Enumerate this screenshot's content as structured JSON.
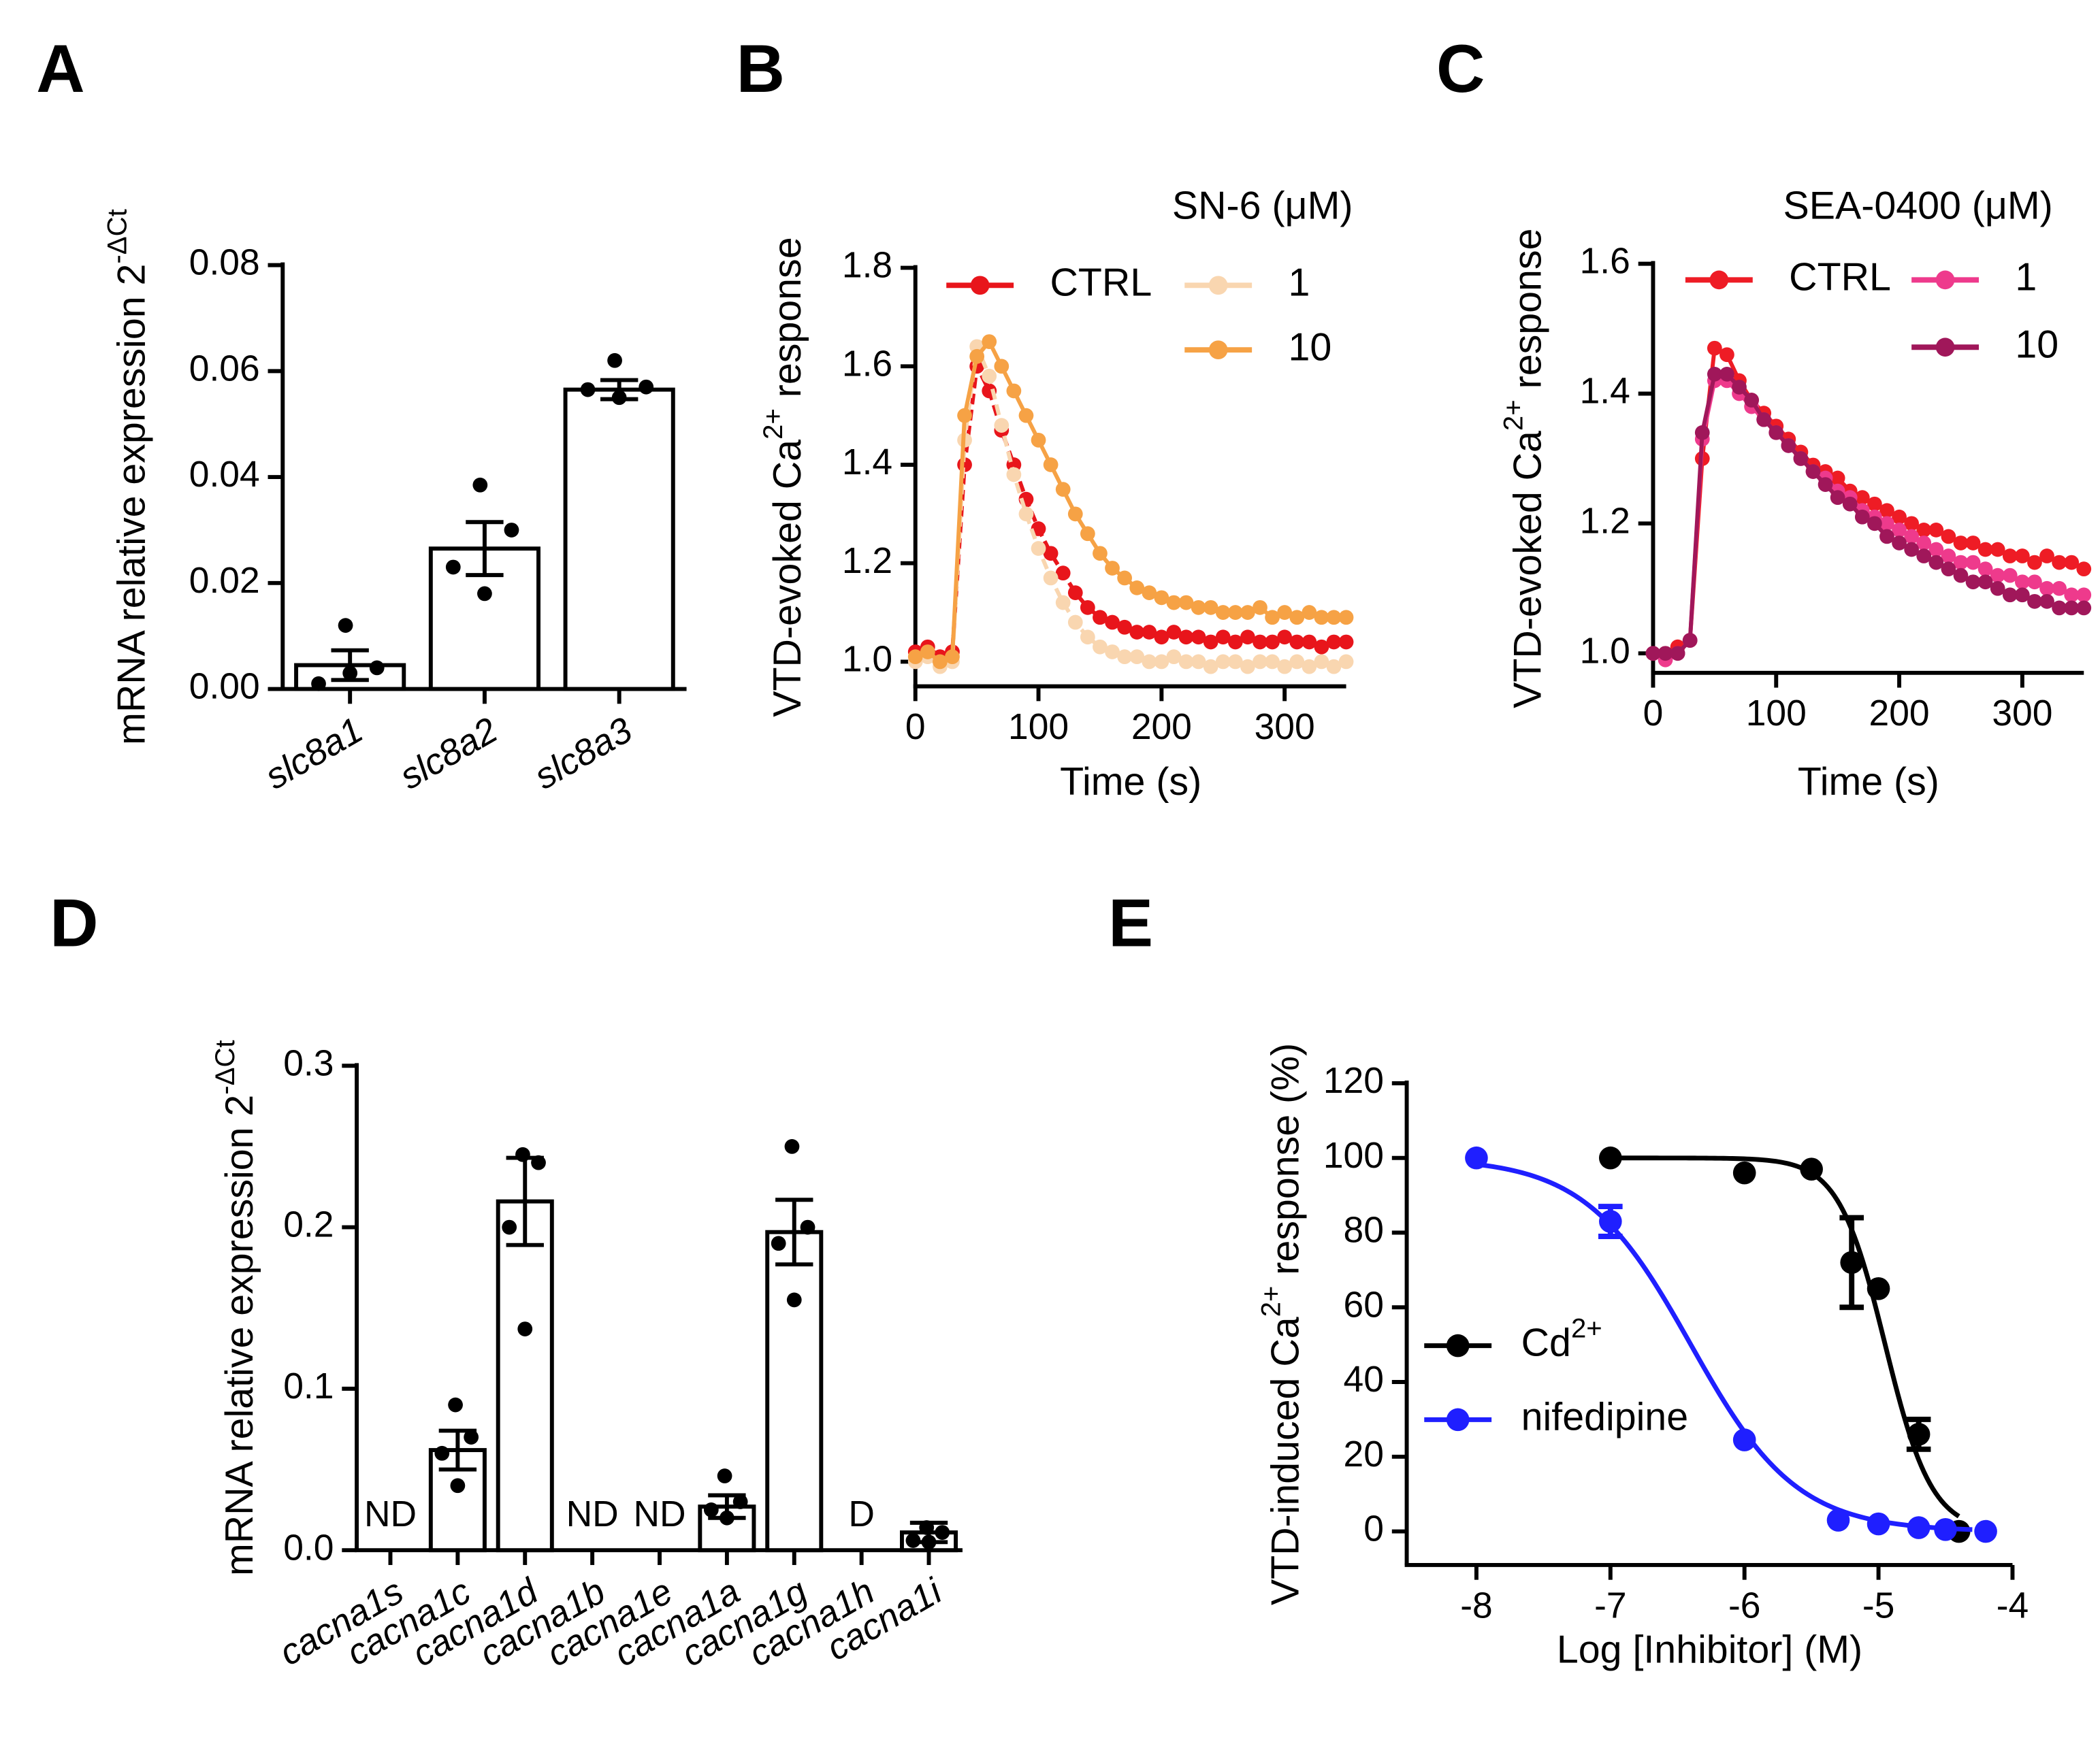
{
  "chart_data": [
    {
      "type": "bar",
      "panel": "A",
      "ylabel": [
        "mRNA relative expression 2",
        "-ΔCt"
      ],
      "categories": [
        "slc8a1",
        "slc8a2",
        "slc8a3"
      ],
      "values": [
        0.0045,
        0.0265,
        0.0565
      ],
      "errors": [
        0.0028,
        0.005,
        0.0018
      ],
      "points": [
        [
          0.012,
          0.004,
          0.001,
          0.003
        ],
        [
          0.0385,
          0.03,
          0.023,
          0.018
        ],
        [
          0.062,
          0.057,
          0.0565,
          0.055
        ]
      ],
      "color": "#ffffff",
      "ylim": [
        0,
        0.08
      ],
      "yticks": [
        {
          "value": 0,
          "label": "0.00"
        },
        0.02,
        0.04,
        0.06,
        0.08
      ]
    },
    {
      "type": "line",
      "panel": "B",
      "legend_title": "SN-6 (μM)",
      "ylabel": [
        "VTD-evoked Ca",
        "2+",
        " response"
      ],
      "xlabel": "Time (s)",
      "x": [
        0,
        10,
        20,
        30,
        40,
        50,
        60,
        70,
        80,
        90,
        100,
        110,
        120,
        130,
        140,
        150,
        160,
        170,
        180,
        190,
        200,
        210,
        220,
        230,
        240,
        250,
        260,
        270,
        280,
        290,
        300,
        310,
        320,
        330,
        340,
        350
      ],
      "series": [
        {
          "name": "CTRL",
          "color": "#e8151b",
          "values": [
            1.02,
            1.03,
            1.01,
            1.02,
            1.4,
            1.6,
            1.55,
            1.47,
            1.4,
            1.33,
            1.27,
            1.22,
            1.18,
            1.14,
            1.11,
            1.09,
            1.08,
            1.07,
            1.06,
            1.06,
            1.05,
            1.06,
            1.05,
            1.05,
            1.04,
            1.05,
            1.04,
            1.05,
            1.04,
            1.04,
            1.05,
            1.04,
            1.04,
            1.03,
            1.04,
            1.04
          ]
        },
        {
          "name": "1",
          "color": "#f9d6b0",
          "values": [
            1.0,
            1.01,
            0.99,
            1.0,
            1.45,
            1.64,
            1.58,
            1.48,
            1.38,
            1.3,
            1.23,
            1.17,
            1.12,
            1.08,
            1.05,
            1.03,
            1.02,
            1.01,
            1.01,
            1.0,
            1.0,
            1.01,
            1.0,
            1.0,
            0.99,
            1.0,
            1.0,
            0.99,
            1.0,
            1.0,
            0.99,
            1.0,
            0.99,
            1.0,
            0.99,
            1.0
          ]
        },
        {
          "name": "10",
          "color": "#f6a245",
          "values": [
            1.01,
            1.02,
            1.0,
            1.01,
            1.5,
            1.62,
            1.65,
            1.6,
            1.55,
            1.5,
            1.45,
            1.4,
            1.35,
            1.3,
            1.26,
            1.22,
            1.19,
            1.17,
            1.15,
            1.14,
            1.13,
            1.12,
            1.12,
            1.11,
            1.11,
            1.1,
            1.1,
            1.1,
            1.11,
            1.09,
            1.1,
            1.09,
            1.1,
            1.09,
            1.09,
            1.09
          ]
        }
      ],
      "xlim": [
        0,
        350
      ],
      "xticks": [
        0,
        100,
        200,
        300
      ],
      "ylim": [
        0.95,
        1.8
      ],
      "yticks": [
        {
          "value": 1,
          "label": "1.0"
        },
        1.2,
        1.4,
        1.6,
        1.8
      ]
    },
    {
      "type": "line",
      "panel": "C",
      "legend_title": "SEA-0400  (μM)",
      "ylabel": [
        "VTD-evoked Ca",
        "2+",
        " response"
      ],
      "xlabel": "Time (s)",
      "x": [
        0,
        10,
        20,
        30,
        40,
        50,
        60,
        70,
        80,
        90,
        100,
        110,
        120,
        130,
        140,
        150,
        160,
        170,
        180,
        190,
        200,
        210,
        220,
        230,
        240,
        250,
        260,
        270,
        280,
        290,
        300,
        310,
        320,
        330,
        340,
        350
      ],
      "series": [
        {
          "name": "CTRL",
          "color": "#ee1c25",
          "values": [
            1.0,
            1.0,
            1.01,
            1.02,
            1.3,
            1.47,
            1.46,
            1.42,
            1.39,
            1.37,
            1.35,
            1.33,
            1.31,
            1.29,
            1.28,
            1.27,
            1.25,
            1.24,
            1.23,
            1.22,
            1.21,
            1.2,
            1.19,
            1.19,
            1.18,
            1.17,
            1.17,
            1.16,
            1.16,
            1.15,
            1.15,
            1.14,
            1.15,
            1.14,
            1.14,
            1.13
          ]
        },
        {
          "name": "1",
          "color": "#ee3a8c",
          "values": [
            1.0,
            0.99,
            1.0,
            1.02,
            1.33,
            1.42,
            1.42,
            1.4,
            1.38,
            1.36,
            1.34,
            1.32,
            1.3,
            1.28,
            1.27,
            1.25,
            1.24,
            1.22,
            1.21,
            1.2,
            1.19,
            1.18,
            1.17,
            1.16,
            1.15,
            1.14,
            1.14,
            1.13,
            1.12,
            1.12,
            1.11,
            1.11,
            1.1,
            1.1,
            1.09,
            1.09
          ]
        },
        {
          "name": "10",
          "color": "#a0175a",
          "values": [
            1.0,
            1.0,
            1.0,
            1.02,
            1.34,
            1.43,
            1.43,
            1.41,
            1.39,
            1.36,
            1.34,
            1.32,
            1.3,
            1.28,
            1.26,
            1.24,
            1.23,
            1.21,
            1.2,
            1.18,
            1.17,
            1.16,
            1.15,
            1.14,
            1.13,
            1.12,
            1.11,
            1.11,
            1.1,
            1.09,
            1.09,
            1.08,
            1.08,
            1.07,
            1.07,
            1.07
          ]
        }
      ],
      "xlim": [
        0,
        350
      ],
      "xticks": [
        0,
        100,
        200,
        300
      ],
      "ylim": [
        0.97,
        1.6
      ],
      "yticks": [
        {
          "value": 1,
          "label": "1.0"
        },
        1.2,
        1.4,
        1.6
      ]
    },
    {
      "type": "bar",
      "panel": "D",
      "ylabel": [
        "mRNA relative expression 2",
        "-ΔCt"
      ],
      "categories": [
        "cacna1s",
        "cacna1c",
        "cacna1d",
        "cacna1b",
        "cacna1e",
        "cacna1a",
        "cacna1g",
        "cacna1h",
        "cacna1i"
      ],
      "values": [
        null,
        0.062,
        0.216,
        null,
        null,
        0.027,
        0.197,
        null,
        0.011
      ],
      "value_labels": [
        "ND",
        null,
        null,
        "ND",
        "ND",
        null,
        null,
        "D",
        null
      ],
      "errors": [
        null,
        0.012,
        0.027,
        null,
        null,
        0.007,
        0.02,
        null,
        0.006
      ],
      "points": [
        null,
        [
          0.09,
          0.07,
          0.06,
          0.04
        ],
        [
          0.245,
          0.24,
          0.2,
          0.137
        ],
        null,
        null,
        [
          0.046,
          0.03,
          0.025,
          0.02
        ],
        [
          0.25,
          0.2,
          0.19,
          0.155
        ],
        null,
        [
          0.014,
          0.011,
          0.006,
          0.005
        ]
      ],
      "color": "#ffffff",
      "ylim": [
        0,
        0.3
      ],
      "yticks": [
        {
          "value": 0,
          "label": "0.0"
        },
        0.1,
        0.2,
        0.3
      ]
    },
    {
      "type": "scatter",
      "panel": "E",
      "ylabel": [
        "VTD-induced Ca",
        "2+",
        " response (%)"
      ],
      "xlabel": "Log [Inhibitor] (M)",
      "series": [
        {
          "name": [
            "Cd",
            "2+"
          ],
          "color": "#000000",
          "x": [
            -7,
            -6,
            -5.5,
            -5.2,
            -5,
            -4.7,
            -4.4
          ],
          "values": [
            100,
            96,
            97,
            72,
            65,
            26,
            0
          ],
          "errors": [
            0,
            0,
            0,
            12,
            0,
            4,
            0
          ],
          "fit": {
            "logIC50": -4.95,
            "hill": 2.5,
            "range": [
              -7,
              -4.4
            ]
          }
        },
        {
          "name": [
            "nifedipine"
          ],
          "color": "#1f1fff",
          "x": [
            -8,
            -7,
            -6,
            -5.3,
            -5,
            -4.7,
            -4.5,
            -4.2
          ],
          "values": [
            100,
            83,
            24.5,
            3,
            2,
            1,
            0.5,
            0
          ],
          "errors": [
            0,
            4,
            0,
            0,
            0,
            0,
            0,
            0
          ],
          "fit": {
            "logIC50": -6.4,
            "hill": 1.1,
            "range": [
              -8,
              -4.3
            ]
          }
        }
      ],
      "xlim": [
        -8.52,
        -4
      ],
      "xticks": [
        -8,
        -7,
        -6,
        -5,
        -4
      ],
      "ylim": [
        -9,
        120
      ],
      "yticks": [
        0,
        20,
        40,
        60,
        80,
        100,
        120
      ]
    }
  ]
}
